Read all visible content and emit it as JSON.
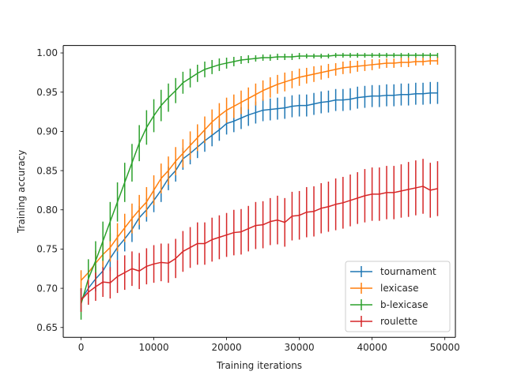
{
  "chart_data": {
    "type": "line",
    "title": "",
    "xlabel": "Training iterations",
    "ylabel": "Training accuracy",
    "xlim": [
      -2450,
      51450
    ],
    "ylim": [
      0.6375,
      1.0095
    ],
    "xticks": [
      0,
      10000,
      20000,
      30000,
      40000,
      50000
    ],
    "xtick_labels": [
      "0",
      "10000",
      "20000",
      "30000",
      "40000",
      "50000"
    ],
    "yticks": [
      0.65,
      0.7,
      0.75,
      0.8,
      0.85,
      0.9,
      0.95,
      1.0
    ],
    "ytick_labels": [
      "0.65",
      "0.70",
      "0.75",
      "0.80",
      "0.85",
      "0.90",
      "0.95",
      "1.00"
    ],
    "grid": false,
    "legend_position": "lower-right",
    "x": [
      0,
      1000,
      2000,
      3000,
      4000,
      5000,
      6000,
      7000,
      8000,
      9000,
      10000,
      11000,
      12000,
      13000,
      14000,
      15000,
      16000,
      17000,
      18000,
      19000,
      20000,
      21000,
      22000,
      23000,
      24000,
      25000,
      26000,
      27000,
      28000,
      29000,
      30000,
      31000,
      32000,
      33000,
      34000,
      35000,
      36000,
      37000,
      38000,
      39000,
      40000,
      41000,
      42000,
      43000,
      44000,
      45000,
      46000,
      47000,
      48000,
      49000
    ],
    "series": [
      {
        "name": "tournament",
        "color": "#1f77b4",
        "values": [
          0.685,
          0.7,
          0.712,
          0.722,
          0.738,
          0.752,
          0.763,
          0.775,
          0.79,
          0.8,
          0.812,
          0.825,
          0.84,
          0.85,
          0.865,
          0.872,
          0.88,
          0.888,
          0.895,
          0.902,
          0.91,
          0.913,
          0.917,
          0.921,
          0.924,
          0.927,
          0.928,
          0.929,
          0.93,
          0.932,
          0.933,
          0.933,
          0.935,
          0.937,
          0.938,
          0.94,
          0.94,
          0.941,
          0.943,
          0.944,
          0.945,
          0.945,
          0.946,
          0.946,
          0.947,
          0.947,
          0.948,
          0.948,
          0.949,
          0.949
        ],
        "errors": [
          0.015,
          0.015,
          0.016,
          0.016,
          0.016,
          0.016,
          0.016,
          0.016,
          0.015,
          0.015,
          0.015,
          0.015,
          0.015,
          0.014,
          0.014,
          0.014,
          0.014,
          0.014,
          0.014,
          0.014,
          0.014,
          0.014,
          0.014,
          0.014,
          0.014,
          0.014,
          0.014,
          0.014,
          0.014,
          0.014,
          0.014,
          0.014,
          0.014,
          0.014,
          0.014,
          0.014,
          0.014,
          0.014,
          0.014,
          0.014,
          0.014,
          0.014,
          0.014,
          0.014,
          0.014,
          0.014,
          0.014,
          0.014,
          0.014,
          0.014
        ]
      },
      {
        "name": "lexicase",
        "color": "#ff7f0e",
        "values": [
          0.71,
          0.72,
          0.732,
          0.743,
          0.752,
          0.765,
          0.777,
          0.789,
          0.8,
          0.81,
          0.825,
          0.84,
          0.85,
          0.862,
          0.872,
          0.882,
          0.892,
          0.902,
          0.912,
          0.92,
          0.927,
          0.932,
          0.937,
          0.942,
          0.947,
          0.952,
          0.956,
          0.96,
          0.963,
          0.966,
          0.969,
          0.971,
          0.973,
          0.975,
          0.977,
          0.979,
          0.981,
          0.982,
          0.983,
          0.984,
          0.985,
          0.986,
          0.987,
          0.987,
          0.988,
          0.988,
          0.989,
          0.989,
          0.99,
          0.99
        ],
        "errors": [
          0.013,
          0.015,
          0.016,
          0.017,
          0.018,
          0.018,
          0.018,
          0.019,
          0.019,
          0.019,
          0.019,
          0.019,
          0.018,
          0.018,
          0.018,
          0.018,
          0.017,
          0.017,
          0.016,
          0.016,
          0.016,
          0.015,
          0.015,
          0.014,
          0.014,
          0.013,
          0.013,
          0.012,
          0.012,
          0.011,
          0.011,
          0.01,
          0.01,
          0.009,
          0.009,
          0.008,
          0.008,
          0.008,
          0.007,
          0.007,
          0.007,
          0.006,
          0.006,
          0.006,
          0.006,
          0.006,
          0.005,
          0.005,
          0.005,
          0.005
        ]
      },
      {
        "name": "b-lexicase",
        "color": "#2ca02c",
        "values": [
          0.68,
          0.712,
          0.735,
          0.76,
          0.785,
          0.81,
          0.835,
          0.86,
          0.885,
          0.905,
          0.92,
          0.933,
          0.943,
          0.952,
          0.962,
          0.968,
          0.974,
          0.979,
          0.982,
          0.985,
          0.987,
          0.989,
          0.991,
          0.992,
          0.993,
          0.994,
          0.994,
          0.995,
          0.995,
          0.995,
          0.996,
          0.996,
          0.996,
          0.996,
          0.996,
          0.997,
          0.997,
          0.997,
          0.997,
          0.997,
          0.997,
          0.997,
          0.997,
          0.997,
          0.997,
          0.997,
          0.997,
          0.997,
          0.997,
          0.997
        ],
        "errors": [
          0.02,
          0.025,
          0.025,
          0.025,
          0.025,
          0.025,
          0.025,
          0.024,
          0.023,
          0.022,
          0.021,
          0.02,
          0.018,
          0.016,
          0.014,
          0.012,
          0.011,
          0.01,
          0.009,
          0.008,
          0.007,
          0.006,
          0.005,
          0.005,
          0.004,
          0.004,
          0.004,
          0.004,
          0.004,
          0.004,
          0.004,
          0.003,
          0.003,
          0.003,
          0.003,
          0.003,
          0.003,
          0.003,
          0.003,
          0.003,
          0.003,
          0.003,
          0.003,
          0.003,
          0.003,
          0.003,
          0.003,
          0.003,
          0.003,
          0.003
        ]
      },
      {
        "name": "roulette",
        "color": "#d62728",
        "values": [
          0.685,
          0.695,
          0.702,
          0.708,
          0.707,
          0.715,
          0.72,
          0.725,
          0.722,
          0.728,
          0.731,
          0.733,
          0.732,
          0.738,
          0.747,
          0.752,
          0.757,
          0.757,
          0.762,
          0.765,
          0.768,
          0.771,
          0.772,
          0.776,
          0.78,
          0.781,
          0.785,
          0.787,
          0.784,
          0.792,
          0.793,
          0.797,
          0.798,
          0.802,
          0.804,
          0.807,
          0.809,
          0.812,
          0.815,
          0.818,
          0.82,
          0.82,
          0.822,
          0.822,
          0.824,
          0.826,
          0.828,
          0.83,
          0.825,
          0.827
        ],
        "errors": [
          0.015,
          0.016,
          0.018,
          0.019,
          0.02,
          0.021,
          0.022,
          0.022,
          0.023,
          0.023,
          0.024,
          0.024,
          0.025,
          0.025,
          0.026,
          0.026,
          0.027,
          0.027,
          0.028,
          0.028,
          0.028,
          0.029,
          0.029,
          0.029,
          0.03,
          0.03,
          0.03,
          0.031,
          0.031,
          0.031,
          0.031,
          0.032,
          0.032,
          0.032,
          0.032,
          0.033,
          0.033,
          0.033,
          0.033,
          0.034,
          0.034,
          0.034,
          0.034,
          0.034,
          0.034,
          0.035,
          0.035,
          0.035,
          0.035,
          0.035
        ]
      }
    ]
  }
}
